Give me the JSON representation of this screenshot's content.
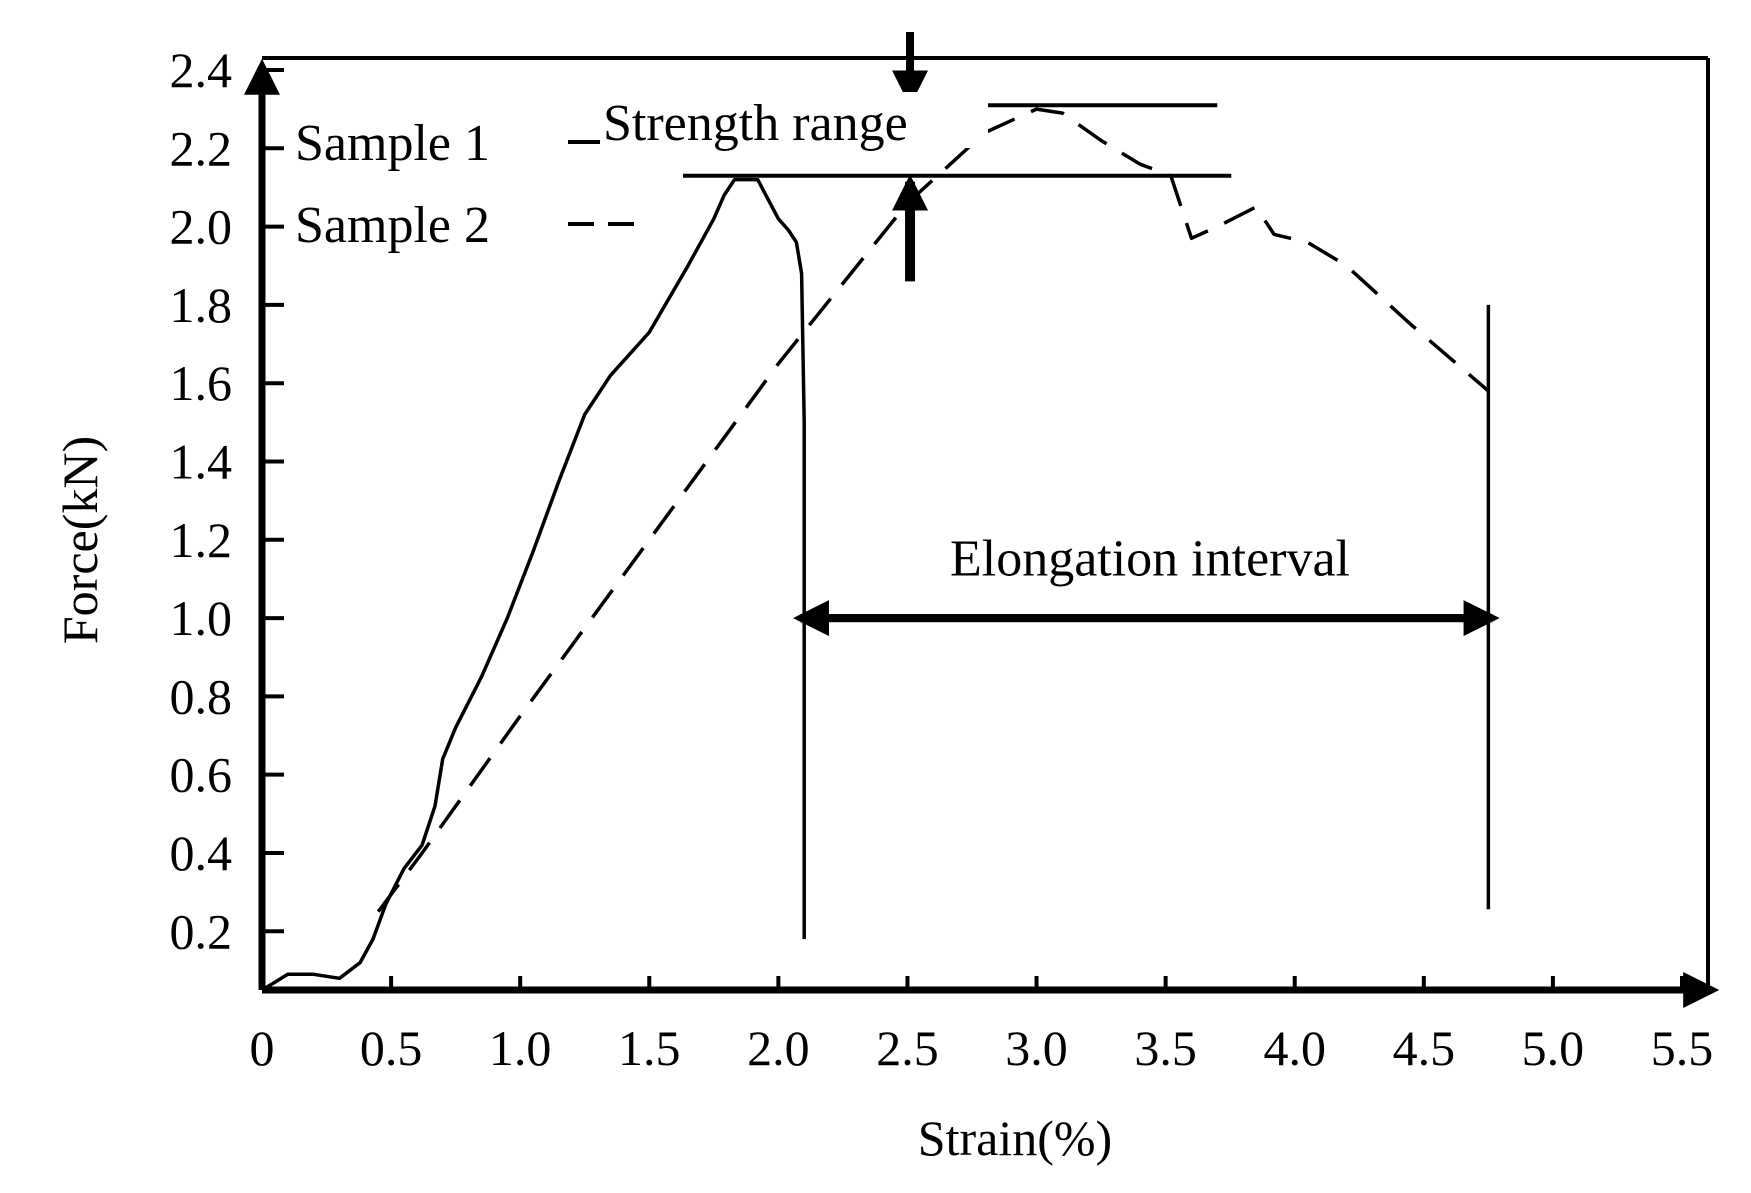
{
  "chart_data": {
    "type": "line",
    "xlabel": "Strain(%)",
    "ylabel": "Force(kN)",
    "xlim": [
      0,
      5.5
    ],
    "ylim": [
      0.05,
      2.4
    ],
    "x_ticks": [
      0,
      0.5,
      1.0,
      1.5,
      2.0,
      2.5,
      3.0,
      3.5,
      4.0,
      4.5,
      5.0,
      5.5
    ],
    "x_tick_labels": [
      "0",
      "0.5",
      "1.0",
      "1.5",
      "2.0",
      "2.5",
      "3.0",
      "3.5",
      "4.0",
      "4.5",
      "5.0",
      "5.5"
    ],
    "y_ticks": [
      0.2,
      0.4,
      0.6,
      0.8,
      1.0,
      1.2,
      1.4,
      1.6,
      1.8,
      2.0,
      2.2,
      2.4
    ],
    "y_tick_labels": [
      "0.2",
      "0.4",
      "0.6",
      "0.8",
      "1.0",
      "1.2",
      "1.4",
      "1.6",
      "1.8",
      "2.0",
      "2.2",
      "2.4"
    ],
    "grid": false,
    "legend_position": "top-left",
    "series": [
      {
        "name": "Sample 1",
        "style": "solid",
        "x": [
          0,
          0.05,
          0.1,
          0.2,
          0.3,
          0.38,
          0.43,
          0.48,
          0.55,
          0.62,
          0.67,
          0.7,
          0.75,
          0.85,
          0.95,
          1.05,
          1.15,
          1.25,
          1.35,
          1.5,
          1.65,
          1.75,
          1.79,
          1.83,
          1.86,
          1.92,
          1.96,
          2.0,
          2.04,
          2.07,
          2.09,
          2.1,
          2.1,
          2.1
        ],
        "y": [
          0.05,
          0.07,
          0.09,
          0.09,
          0.08,
          0.12,
          0.18,
          0.27,
          0.36,
          0.42,
          0.52,
          0.64,
          0.72,
          0.85,
          1.0,
          1.17,
          1.35,
          1.52,
          1.62,
          1.73,
          1.9,
          2.02,
          2.08,
          2.12,
          2.12,
          2.12,
          2.07,
          2.02,
          1.99,
          1.96,
          1.88,
          1.5,
          0.8,
          0.18
        ]
      },
      {
        "name": "Sample 2",
        "style": "dashed",
        "x": [
          0.45,
          0.62,
          1.0,
          1.5,
          2.0,
          2.5,
          2.8,
          3.0,
          3.1,
          3.25,
          3.4,
          3.52,
          3.6,
          3.7,
          3.85,
          3.92,
          4.05,
          4.2,
          4.45,
          4.75
        ],
        "y": [
          0.25,
          0.4,
          0.75,
          1.2,
          1.65,
          2.06,
          2.24,
          2.3,
          2.29,
          2.22,
          2.16,
          2.13,
          1.97,
          2.0,
          2.05,
          1.98,
          1.96,
          1.9,
          1.75,
          1.58
        ]
      }
    ],
    "legend": [
      {
        "label": "Sample 1",
        "style": "solid"
      },
      {
        "label": "Sample 2",
        "style": "dashed"
      }
    ],
    "annotations": {
      "strength_range": {
        "label": "Strength range",
        "upper": 2.31,
        "lower": 2.13,
        "x_start": 1.65,
        "x_end": 3.7,
        "arrow_x": 2.51
      },
      "elongation_interval": {
        "label": "Elongation interval",
        "x_start": 2.1,
        "x_end": 4.75,
        "y": 1.0,
        "line_bottom": 0.2,
        "right_line_top": 1.8
      }
    }
  }
}
